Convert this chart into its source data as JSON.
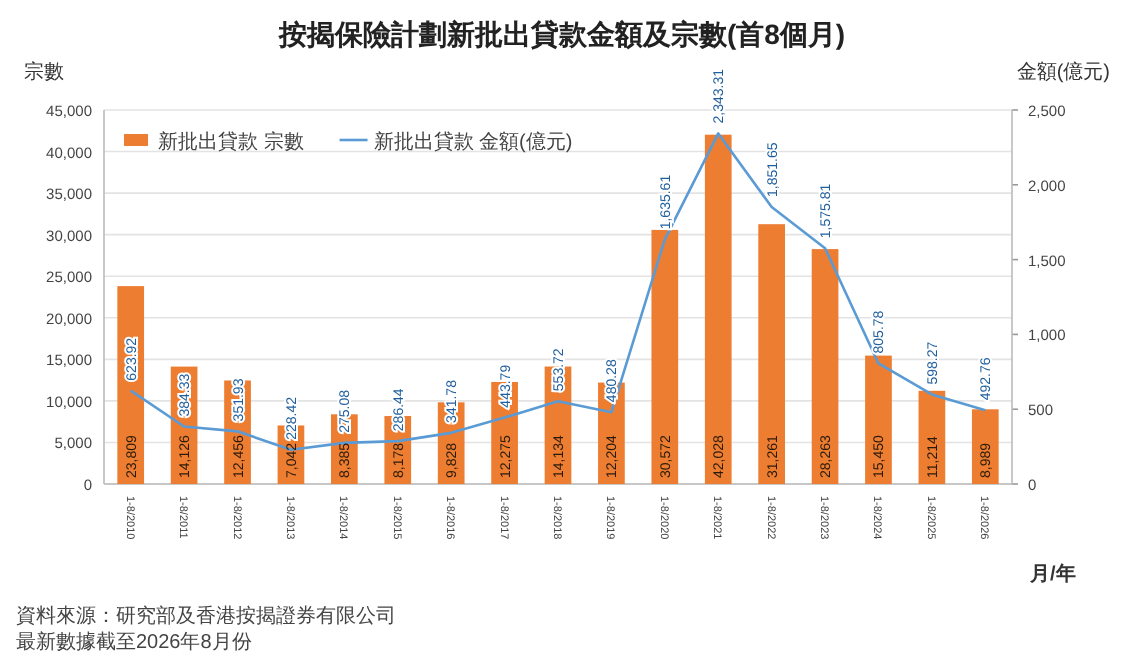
{
  "chart_data": {
    "type": "bar",
    "title": "按揭保險計劃新批出貸款金額及宗數(首8個月)",
    "ylabel": "宗數",
    "y2label": "金額(億元)",
    "xlabel": "月/年",
    "categories": [
      "1-8/2010",
      "1-8/2011",
      "1-8/2012",
      "1-8/2013",
      "1-8/2014",
      "1-8/2015",
      "1-8/2016",
      "1-8/2017",
      "1-8/2018",
      "1-8/2019",
      "1-8/2020",
      "1-8/2021",
      "1-8/2022",
      "1-8/2023",
      "1-8/2024",
      "1-8/2025",
      "1-8/2026"
    ],
    "series": [
      {
        "name": "新批出貸款 宗數",
        "color": "#ed7d31",
        "values": [
          23809,
          14126,
          12456,
          7042,
          8385,
          8178,
          9828,
          12275,
          14134,
          12204,
          30572,
          42028,
          31261,
          28263,
          15450,
          11214,
          8989
        ],
        "value_labels": [
          "23,809",
          "14,126",
          "12,456",
          "7,042",
          "8,385",
          "8,178",
          "9,828",
          "12,275",
          "14,134",
          "12,204",
          "30,572",
          "42,028",
          "31,261",
          "28,263",
          "15,450",
          "11,214",
          "8,989"
        ]
      },
      {
        "name": "新批出貸款 金額(億元)",
        "type": "line",
        "axis": "y2",
        "color": "#5b9bd5",
        "values": [
          623.92,
          384.33,
          351.93,
          228.42,
          275.08,
          286.44,
          341.78,
          443.79,
          553.72,
          480.28,
          1635.61,
          2343.31,
          1851.65,
          1575.81,
          805.78,
          598.27,
          492.76
        ],
        "value_labels": [
          "623.92",
          "384.33",
          "351.93",
          "228.42",
          "275.08",
          "286.44",
          "341.78",
          "443.79",
          "553.72",
          "480.28",
          "1,635.61",
          "2,343.31",
          "1,851.65",
          "1,575.81",
          "805.78",
          "598.27",
          "492.76"
        ]
      }
    ],
    "ylim": [
      0,
      45000
    ],
    "yticks": [
      {
        "value": 0,
        "label": "0"
      },
      {
        "value": 5000,
        "label": "5,000"
      },
      {
        "value": 10000,
        "label": "10,000"
      },
      {
        "value": 15000,
        "label": "15,000"
      },
      {
        "value": 20000,
        "label": "20,000"
      },
      {
        "value": 25000,
        "label": "25,000"
      },
      {
        "value": 30000,
        "label": "30,000"
      },
      {
        "value": 35000,
        "label": "35,000"
      },
      {
        "value": 40000,
        "label": "40,000"
      },
      {
        "value": 45000,
        "label": "45,000"
      }
    ],
    "y2lim": [
      0,
      2500
    ],
    "y2ticks": [
      {
        "value": 0,
        "label": "0"
      },
      {
        "value": 500,
        "label": "500"
      },
      {
        "value": 1000,
        "label": "1,000"
      },
      {
        "value": 1500,
        "label": "1,500"
      },
      {
        "value": 2000,
        "label": "2,000"
      },
      {
        "value": 2500,
        "label": "2,500"
      }
    ],
    "grid": "y",
    "legend": "top left",
    "annotations": [
      "資料來源：研究部及香港按揭證券有限公司",
      "最新數據截至2026年8月份"
    ]
  }
}
